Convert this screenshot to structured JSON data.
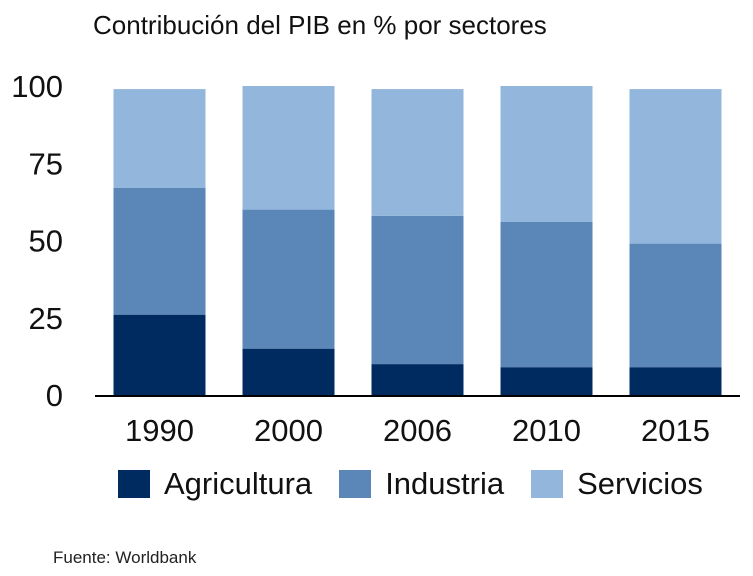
{
  "chart_data": {
    "type": "bar",
    "stacked": true,
    "title": "Contribución del PIB en % por sectores",
    "xlabel": "",
    "ylabel": "",
    "categories": [
      "1990",
      "2000",
      "2006",
      "2010",
      "2015"
    ],
    "series": [
      {
        "name": "Agricultura",
        "color": "#002b60",
        "values": [
          26,
          15,
          10,
          9,
          9
        ]
      },
      {
        "name": "Industria",
        "color": "#5a86b8",
        "values": [
          41,
          45,
          48,
          47,
          40
        ]
      },
      {
        "name": "Servicios",
        "color": "#93b6dc",
        "values": [
          32,
          40,
          41,
          44,
          50
        ]
      }
    ],
    "ylim": [
      0,
      100
    ],
    "yticks": [
      0,
      25,
      50,
      75,
      100
    ],
    "grid": false,
    "legend": "bottom"
  },
  "source": "Fuente: Worldbank"
}
